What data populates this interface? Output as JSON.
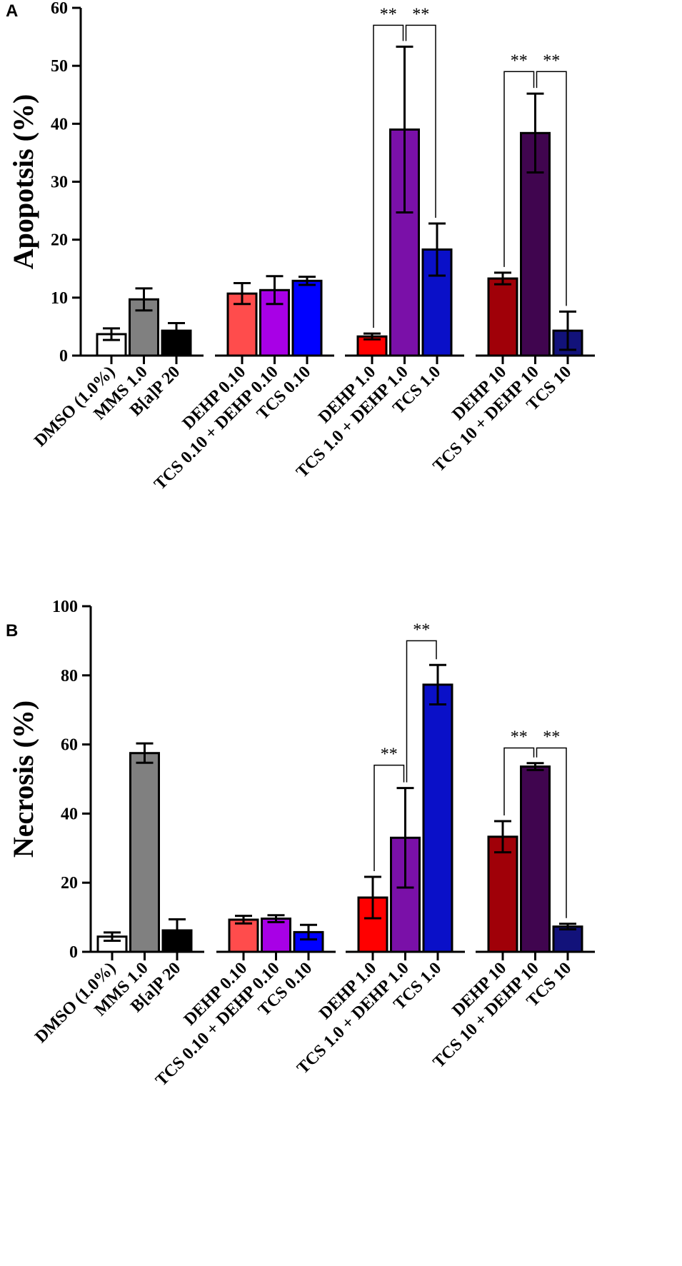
{
  "chart_data": [
    {
      "panel": "A",
      "type": "bar",
      "title": "",
      "xlabel": "",
      "ylabel": "Apopotsis (%)",
      "ylim": [
        0,
        60
      ],
      "yticks": [
        0,
        10,
        20,
        30,
        40,
        50,
        60
      ],
      "groups": [
        [
          0,
          1,
          2
        ],
        [
          3,
          4,
          5
        ],
        [
          6,
          7,
          8
        ],
        [
          9,
          10,
          11
        ]
      ],
      "categories": [
        "DMSO (1.0%)",
        "MMS 1.0",
        "B[a]P 20",
        "DEHP 0.10",
        "TCS 0.10 + DEHP 0.10",
        "TCS 0.10",
        "DEHP 1.0",
        "TCS 1.0 + DEHP 1.0",
        "TCS 1.0",
        "DEHP 10",
        "TCS 10 + DEHP 10",
        "TCS 10"
      ],
      "values": [
        3.7,
        9.7,
        4.3,
        10.7,
        11.3,
        12.9,
        3.3,
        39.0,
        18.3,
        13.3,
        38.4,
        4.3
      ],
      "errors": [
        1.0,
        1.9,
        1.3,
        1.8,
        2.4,
        0.7,
        0.5,
        14.3,
        4.5,
        1.0,
        6.8,
        3.3
      ],
      "colors": [
        "#ffffff",
        "#808080",
        "#000000",
        "#ff4c4c",
        "#a800e6",
        "#0000ff",
        "#ff0000",
        "#7a10a8",
        "#0a10c8",
        "#a00008",
        "#40054f",
        "#12127a"
      ],
      "significance": [
        {
          "from": 6,
          "to": 7,
          "label": "**",
          "y": 57
        },
        {
          "from": 7,
          "to": 8,
          "label": "**",
          "y": 57
        },
        {
          "from": 9,
          "to": 10,
          "label": "**",
          "y": 49
        },
        {
          "from": 10,
          "to": 11,
          "label": "**",
          "y": 49
        }
      ]
    },
    {
      "panel": "B",
      "type": "bar",
      "title": "",
      "xlabel": "",
      "ylabel": "Necrosis (%)",
      "ylim": [
        0,
        100
      ],
      "yticks": [
        0,
        20,
        40,
        60,
        80,
        100
      ],
      "groups": [
        [
          0,
          1,
          2
        ],
        [
          3,
          4,
          5
        ],
        [
          6,
          7,
          8
        ],
        [
          9,
          10,
          11
        ]
      ],
      "categories": [
        "DMSO (1.0%)",
        "MMS 1.0",
        "B[a]P 20",
        "DEHP 0.10",
        "TCS 0.10 + DEHP 0.10",
        "TCS 0.10",
        "DEHP 1.0",
        "TCS 1.0 + DEHP 1.0",
        "TCS 1.0",
        "DEHP 10",
        "TCS 10 + DEHP 10",
        "TCS 10"
      ],
      "values": [
        4.4,
        57.5,
        6.2,
        9.3,
        9.6,
        5.7,
        15.7,
        33.0,
        77.3,
        33.3,
        53.6,
        7.3
      ],
      "errors": [
        1.2,
        2.8,
        3.2,
        1.1,
        1.0,
        2.1,
        6.0,
        14.4,
        5.7,
        4.5,
        1.0,
        0.8
      ],
      "colors": [
        "#ffffff",
        "#808080",
        "#000000",
        "#ff4c4c",
        "#a800e6",
        "#0000ff",
        "#ff0000",
        "#7a10a8",
        "#0a10c8",
        "#a00008",
        "#40054f",
        "#12127a"
      ],
      "significance": [
        {
          "from": 6,
          "to": 7,
          "label": "**",
          "y": 54
        },
        {
          "from": 7,
          "to": 8,
          "label": "**",
          "y": 90
        },
        {
          "from": 9,
          "to": 10,
          "label": "**",
          "y": 59
        },
        {
          "from": 10,
          "to": 11,
          "label": "**",
          "y": 59
        }
      ]
    }
  ]
}
